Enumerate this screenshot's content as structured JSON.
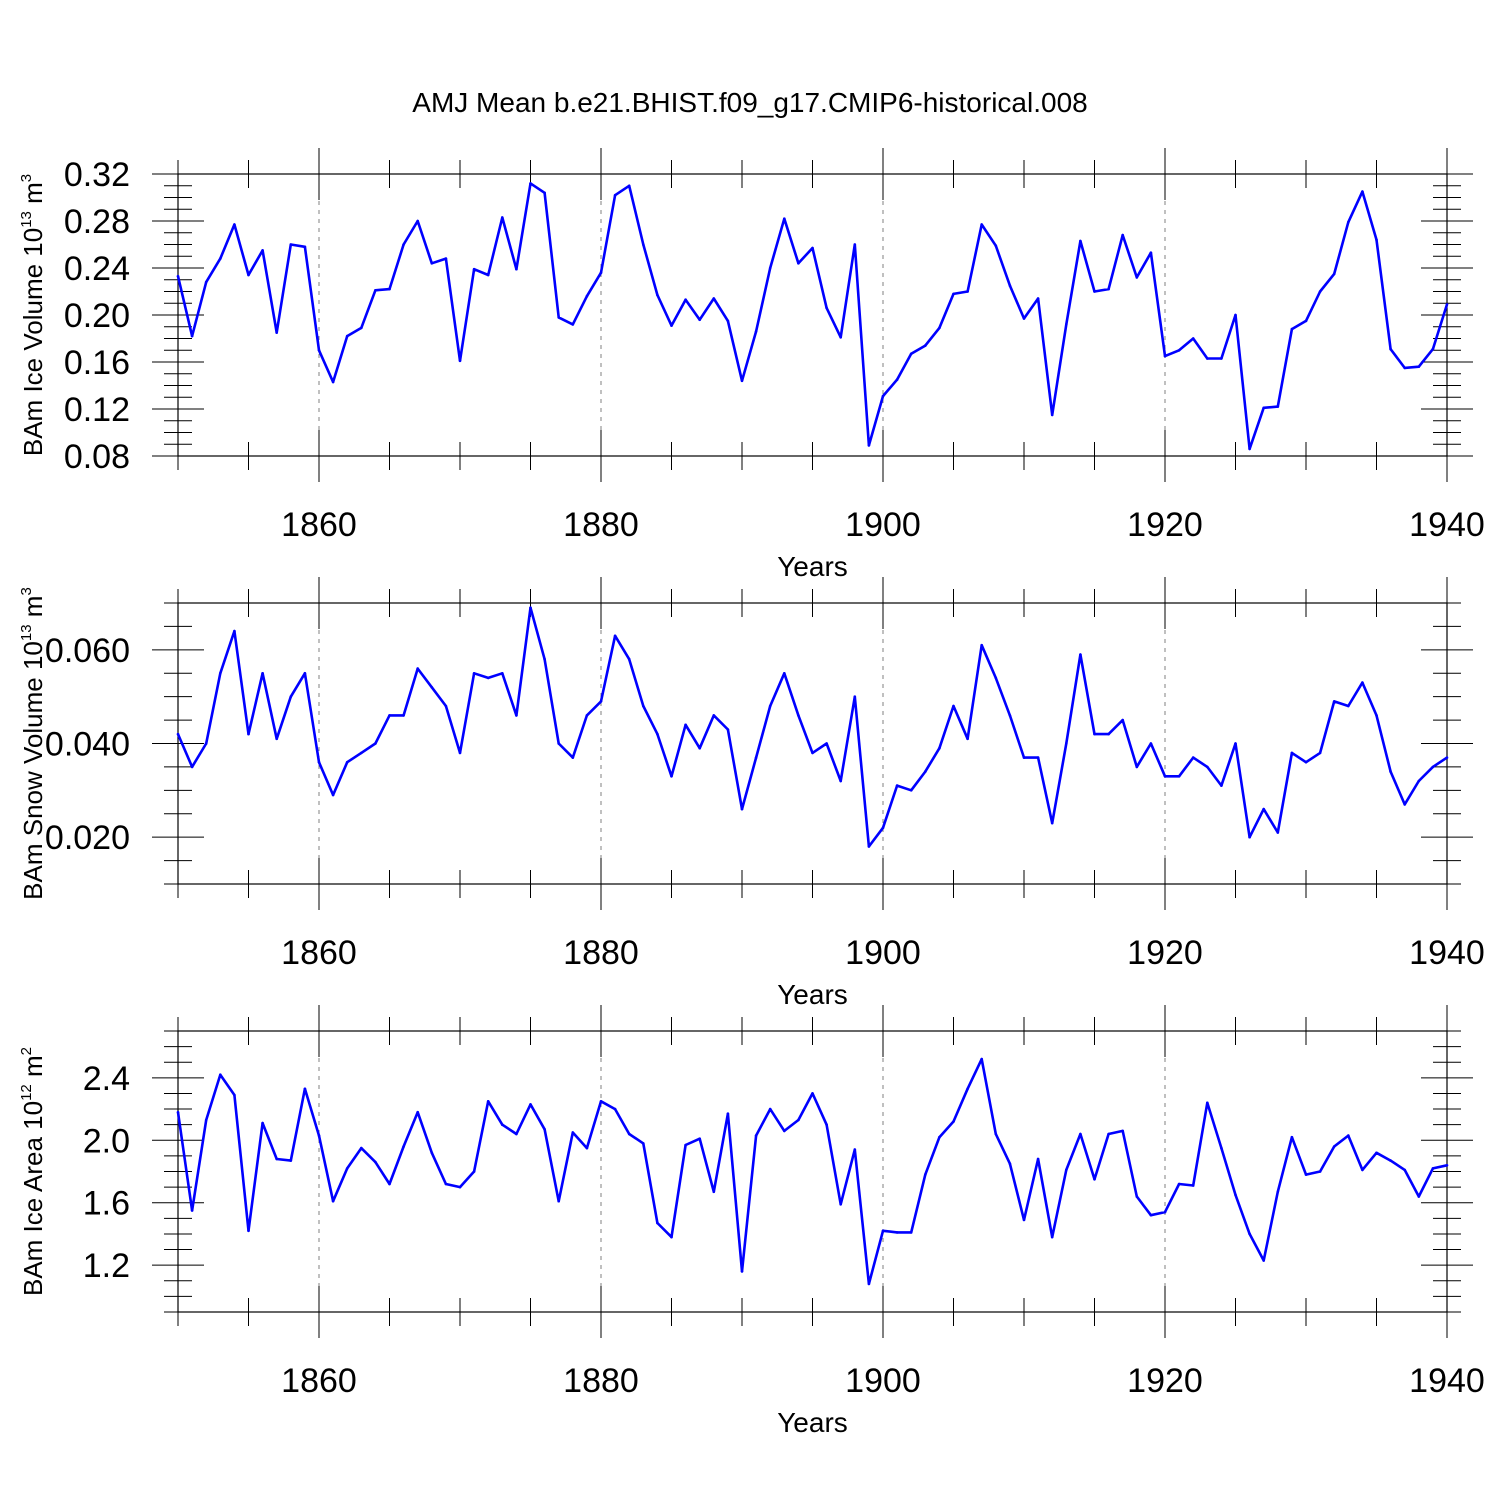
{
  "title": "AMJ Mean b.e21.BHIST.f09_g17.CMIP6-historical.008",
  "colors": {
    "series": "#0000ff",
    "axis": "#000000",
    "grid": "#808080"
  },
  "chart_data": [
    {
      "type": "line",
      "xlabel": "Years",
      "ylabel": {
        "base": "BAm Ice Volume 10",
        "exponent": "13",
        "unit": "m",
        "unit_exponent": "3"
      },
      "xlim": [
        1850,
        1940
      ],
      "ylim": [
        0.08,
        0.32
      ],
      "x_ticks": [
        1860,
        1880,
        1900,
        1920,
        1940
      ],
      "y_ticks": [
        0.08,
        0.12,
        0.16,
        0.2,
        0.24,
        0.28,
        0.32
      ],
      "y_tick_labels": [
        "0.08",
        "0.12",
        "0.16",
        "0.20",
        "0.24",
        "0.28",
        "0.32"
      ],
      "y_minor_step": 0.01,
      "gridlines": [
        1860,
        1880,
        1900,
        1920
      ],
      "x_start": 1850,
      "y": [
        0.233,
        0.182,
        0.228,
        0.248,
        0.277,
        0.234,
        0.255,
        0.185,
        0.26,
        0.258,
        0.17,
        0.143,
        0.182,
        0.189,
        0.221,
        0.222,
        0.26,
        0.28,
        0.244,
        0.248,
        0.161,
        0.239,
        0.234,
        0.283,
        0.239,
        0.312,
        0.304,
        0.198,
        0.192,
        0.216,
        0.236,
        0.302,
        0.31,
        0.26,
        0.217,
        0.191,
        0.213,
        0.196,
        0.214,
        0.195,
        0.144,
        0.186,
        0.24,
        0.282,
        0.244,
        0.257,
        0.206,
        0.181,
        0.26,
        0.089,
        0.131,
        0.145,
        0.167,
        0.174,
        0.189,
        0.218,
        0.22,
        0.277,
        0.259,
        0.225,
        0.197,
        0.214,
        0.115,
        0.192,
        0.263,
        0.22,
        0.222,
        0.268,
        0.232,
        0.253,
        0.165,
        0.17,
        0.18,
        0.163,
        0.163,
        0.2,
        0.086,
        0.121,
        0.122,
        0.188,
        0.195,
        0.22,
        0.235,
        0.279,
        0.305,
        0.264,
        0.171,
        0.155,
        0.156,
        0.171,
        0.209
      ]
    },
    {
      "type": "line",
      "xlabel": "Years",
      "ylabel": {
        "base": "BAm Snow Volume 10",
        "exponent": "13",
        "unit": "m",
        "unit_exponent": "3"
      },
      "xlim": [
        1850,
        1940
      ],
      "ylim": [
        0.01,
        0.07
      ],
      "x_ticks": [
        1860,
        1880,
        1900,
        1920,
        1940
      ],
      "y_ticks": [
        0.02,
        0.04,
        0.06
      ],
      "y_tick_labels": [
        "0.020",
        "0.040",
        "0.060"
      ],
      "y_minor_step": 0.005,
      "gridlines": [
        1860,
        1880,
        1900,
        1920
      ],
      "x_start": 1850,
      "y": [
        0.042,
        0.035,
        0.04,
        0.055,
        0.064,
        0.042,
        0.055,
        0.041,
        0.05,
        0.055,
        0.036,
        0.029,
        0.036,
        0.038,
        0.04,
        0.046,
        0.046,
        0.056,
        0.052,
        0.048,
        0.038,
        0.055,
        0.054,
        0.055,
        0.046,
        0.069,
        0.058,
        0.04,
        0.037,
        0.046,
        0.049,
        0.063,
        0.058,
        0.048,
        0.042,
        0.033,
        0.044,
        0.039,
        0.046,
        0.043,
        0.026,
        0.037,
        0.048,
        0.055,
        0.046,
        0.038,
        0.04,
        0.032,
        0.05,
        0.018,
        0.022,
        0.031,
        0.03,
        0.034,
        0.039,
        0.048,
        0.041,
        0.061,
        0.054,
        0.046,
        0.037,
        0.037,
        0.023,
        0.04,
        0.059,
        0.042,
        0.042,
        0.045,
        0.035,
        0.04,
        0.033,
        0.033,
        0.037,
        0.035,
        0.031,
        0.04,
        0.02,
        0.026,
        0.021,
        0.038,
        0.036,
        0.038,
        0.049,
        0.048,
        0.053,
        0.046,
        0.034,
        0.027,
        0.032,
        0.035,
        0.037
      ]
    },
    {
      "type": "line",
      "xlabel": "Years",
      "ylabel": {
        "base": "BAm Ice Area 10",
        "exponent": "12",
        "unit": "m",
        "unit_exponent": "2"
      },
      "xlim": [
        1850,
        1940
      ],
      "ylim": [
        0.9,
        2.7
      ],
      "x_ticks": [
        1860,
        1880,
        1900,
        1920,
        1940
      ],
      "y_ticks": [
        1.2,
        1.6,
        2.0,
        2.4
      ],
      "y_tick_labels": [
        "1.2",
        "1.6",
        "2.0",
        "2.4"
      ],
      "y_minor_step": 0.1,
      "gridlines": [
        1860,
        1880,
        1900,
        1920
      ],
      "x_start": 1850,
      "y": [
        2.18,
        1.55,
        2.13,
        2.42,
        2.29,
        1.42,
        2.11,
        1.88,
        1.87,
        2.33,
        2.03,
        1.61,
        1.82,
        1.95,
        1.86,
        1.72,
        1.96,
        2.18,
        1.92,
        1.72,
        1.7,
        1.8,
        2.25,
        2.1,
        2.04,
        2.23,
        2.07,
        1.61,
        2.05,
        1.95,
        2.25,
        2.2,
        2.04,
        1.98,
        1.47,
        1.38,
        1.97,
        2.01,
        1.67,
        2.17,
        1.16,
        2.03,
        2.2,
        2.06,
        2.13,
        2.3,
        2.1,
        1.59,
        1.94,
        1.08,
        1.42,
        1.41,
        1.41,
        1.78,
        2.02,
        2.12,
        2.33,
        2.52,
        2.04,
        1.85,
        1.49,
        1.88,
        1.38,
        1.81,
        2.04,
        1.75,
        2.04,
        2.06,
        1.64,
        1.52,
        1.54,
        1.72,
        1.71,
        2.24,
        1.95,
        1.65,
        1.4,
        1.23,
        1.67,
        2.02,
        1.78,
        1.8,
        1.96,
        2.03,
        1.81,
        1.92,
        1.87,
        1.81,
        1.64,
        1.82,
        1.84
      ]
    }
  ]
}
